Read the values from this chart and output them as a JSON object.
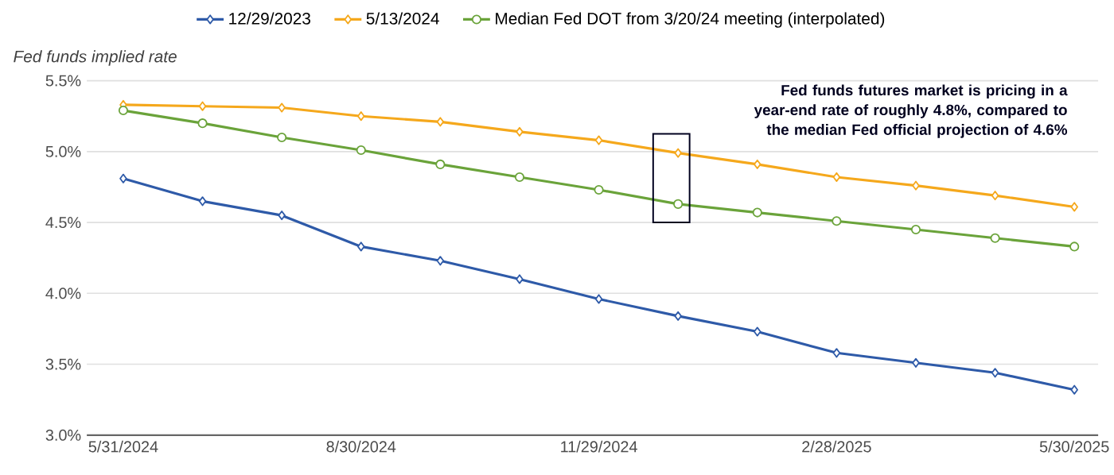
{
  "chart_data": {
    "type": "line",
    "ylabel": "Fed funds implied rate",
    "categories": [
      "5/31/2024",
      null,
      null,
      "8/30/2024",
      null,
      null,
      "11/29/2024",
      null,
      null,
      "2/28/2025",
      null,
      null,
      "5/30/2025"
    ],
    "series": [
      {
        "name": "12/29/2023",
        "color": "#2e5aa8",
        "marker": "diamond",
        "values": [
          4.81,
          4.65,
          4.55,
          4.33,
          4.23,
          4.1,
          3.96,
          3.84,
          3.73,
          3.58,
          3.51,
          3.44,
          3.32
        ]
      },
      {
        "name": "5/13/2024",
        "color": "#f5a81c",
        "marker": "diamond",
        "values": [
          5.33,
          5.32,
          5.31,
          5.25,
          5.21,
          5.14,
          5.08,
          4.99,
          4.91,
          4.82,
          4.76,
          4.69,
          4.61
        ]
      },
      {
        "name": "Median Fed DOT from 3/20/24 meeting (interpolated)",
        "color": "#6aa33a",
        "marker": "circle",
        "values": [
          5.29,
          5.2,
          5.1,
          5.01,
          4.91,
          4.82,
          4.73,
          4.63,
          4.57,
          4.51,
          4.45,
          4.39,
          4.33
        ]
      }
    ],
    "ylim": [
      3.0,
      5.5
    ],
    "yticks": [
      {
        "value": 3.0,
        "label": "3.0%"
      },
      {
        "value": 3.5,
        "label": "3.5%"
      },
      {
        "value": 4.0,
        "label": "4.0%"
      },
      {
        "value": 4.5,
        "label": "4.5%"
      },
      {
        "value": 5.0,
        "label": "5.0%"
      },
      {
        "value": 5.5,
        "label": "5.5%"
      }
    ],
    "grid": "y",
    "legend": "top",
    "annotations": [
      "Fed funds futures market is pricing in a year-end rate of roughly 4.8%, compared to the median Fed official projection of 4.6%"
    ]
  }
}
